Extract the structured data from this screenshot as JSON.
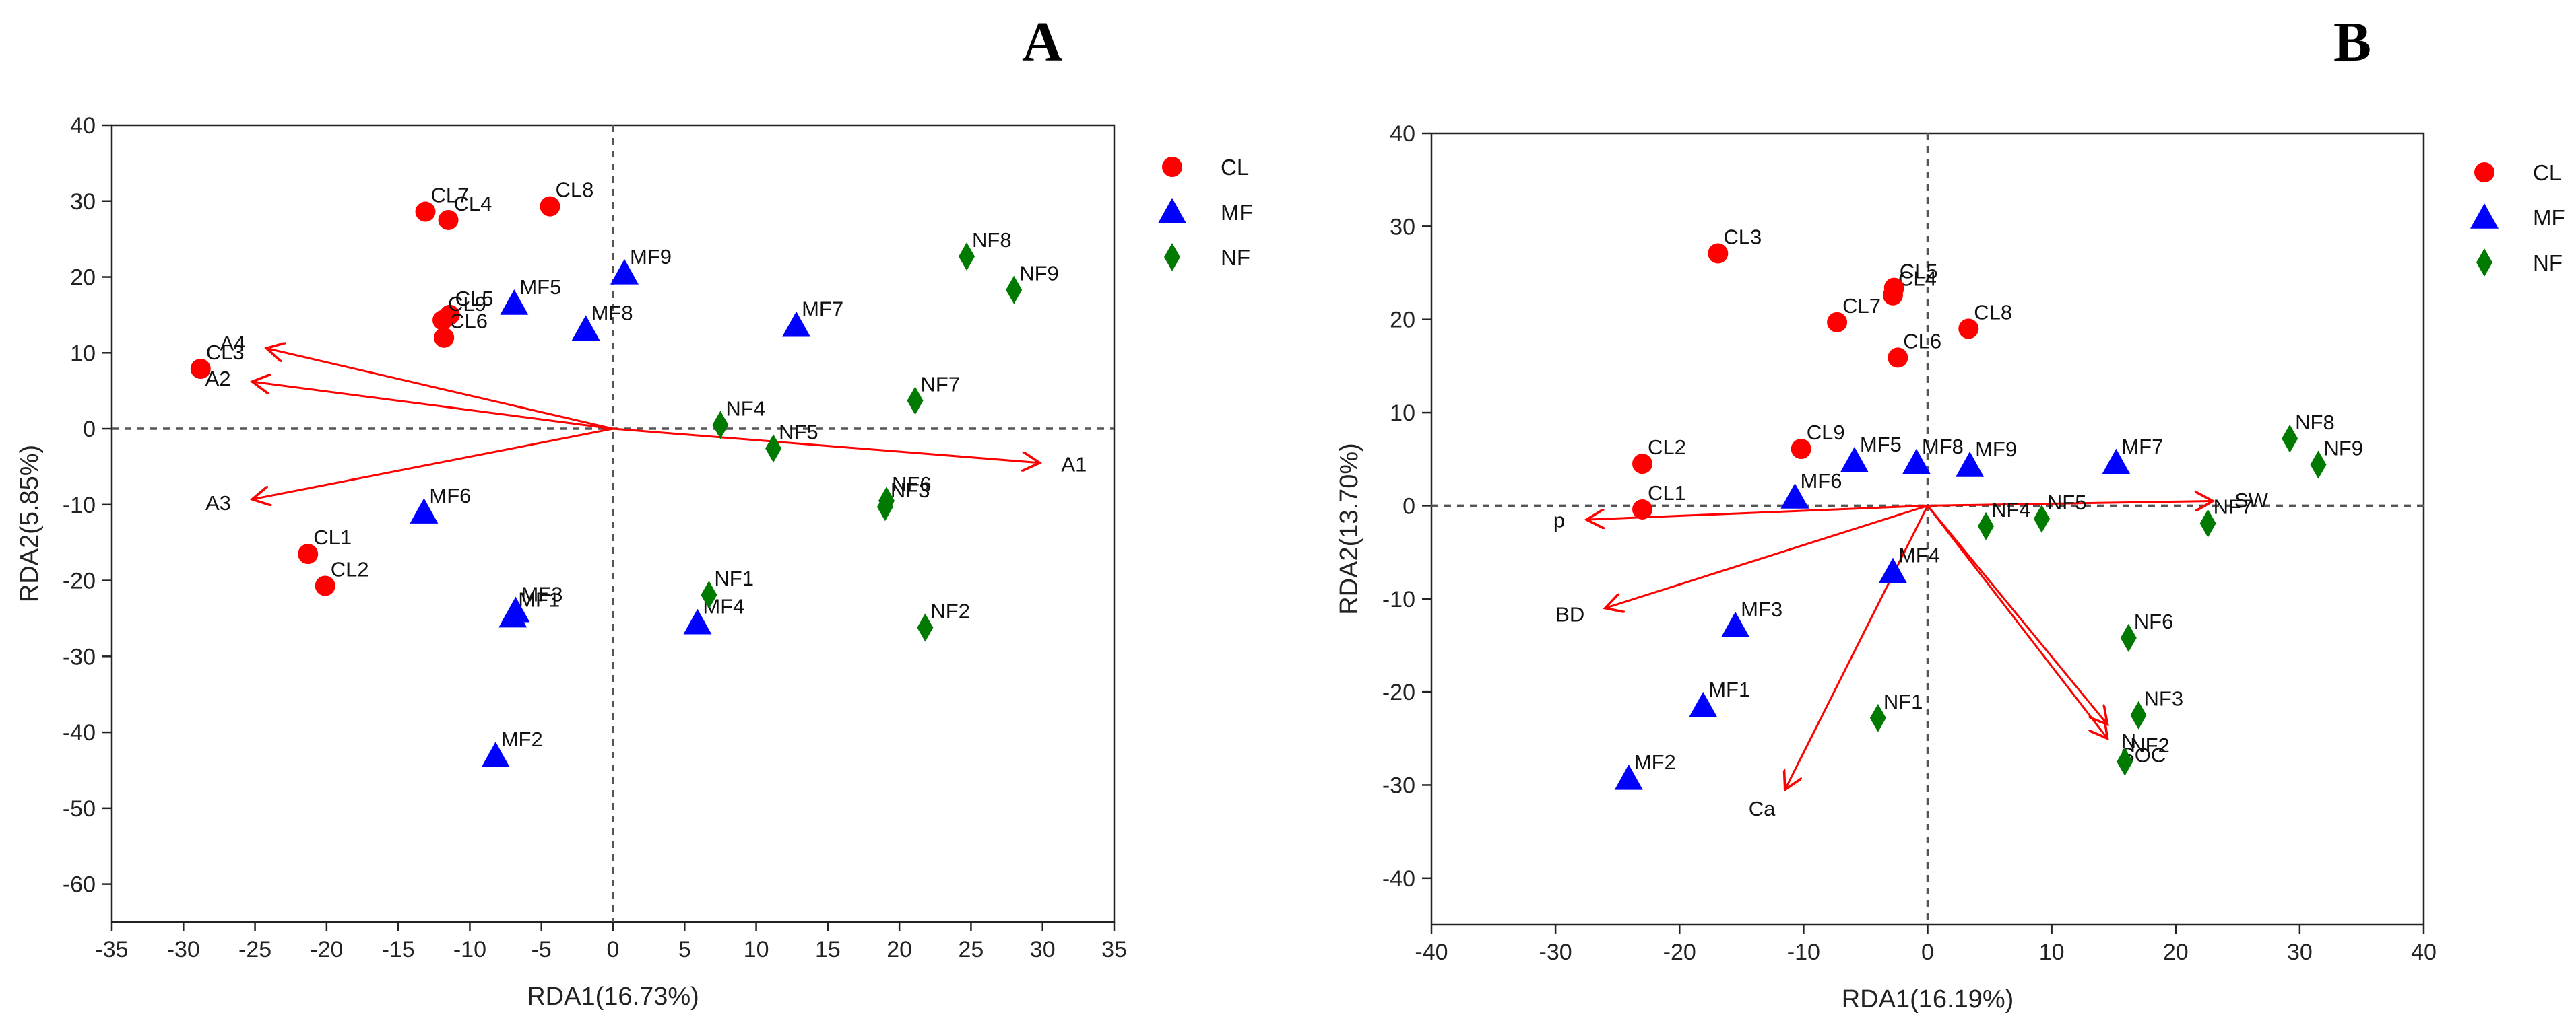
{
  "chart_data": [
    {
      "panel": "A",
      "type": "scatter",
      "xlabel": "RDA1(16.73%)",
      "ylabel": "RDA2(5.85%)",
      "xlim": [
        -35,
        35
      ],
      "ylim": [
        -65,
        40
      ],
      "xticks": [
        -35,
        -30,
        -25,
        -20,
        -15,
        -10,
        -5,
        0,
        5,
        10,
        15,
        20,
        25,
        30,
        35
      ],
      "yticks": [
        -60,
        -50,
        -40,
        -30,
        -20,
        -10,
        0,
        10,
        20,
        30,
        40
      ],
      "legend": [
        {
          "name": "CL",
          "marker": "circle",
          "color": "#ff0000"
        },
        {
          "name": "MF",
          "marker": "triangle",
          "color": "#0000ff"
        },
        {
          "name": "NF",
          "marker": "diamond",
          "color": "#007a00"
        }
      ],
      "points": [
        {
          "label": "CL1",
          "group": "CL",
          "x": -21.3,
          "y": -16.5
        },
        {
          "label": "CL2",
          "group": "CL",
          "x": -20.1,
          "y": -20.7
        },
        {
          "label": "CL3",
          "group": "CL",
          "x": -28.8,
          "y": 7.9
        },
        {
          "label": "CL4",
          "group": "CL",
          "x": -11.5,
          "y": 27.5
        },
        {
          "label": "CL5",
          "group": "CL",
          "x": -11.4,
          "y": 15.0
        },
        {
          "label": "CL6",
          "group": "CL",
          "x": -11.8,
          "y": 12.0
        },
        {
          "label": "CL7",
          "group": "CL",
          "x": -13.1,
          "y": 28.6
        },
        {
          "label": "CL8",
          "group": "CL",
          "x": -4.4,
          "y": 29.3
        },
        {
          "label": "CL9",
          "group": "CL",
          "x": -11.9,
          "y": 14.3
        },
        {
          "label": "MF1",
          "group": "MF",
          "x": -7.0,
          "y": -24.7
        },
        {
          "label": "MF2",
          "group": "MF",
          "x": -8.2,
          "y": -43.1
        },
        {
          "label": "MF3",
          "group": "MF",
          "x": -6.8,
          "y": -24.0
        },
        {
          "label": "MF4",
          "group": "MF",
          "x": 5.9,
          "y": -25.6
        },
        {
          "label": "MF5",
          "group": "MF",
          "x": -6.9,
          "y": 16.5
        },
        {
          "label": "MF6",
          "group": "MF",
          "x": -13.2,
          "y": -11.0
        },
        {
          "label": "MF7",
          "group": "MF",
          "x": 12.8,
          "y": 13.6
        },
        {
          "label": "MF8",
          "group": "MF",
          "x": -1.9,
          "y": 13.1
        },
        {
          "label": "MF9",
          "group": "MF",
          "x": 0.8,
          "y": 20.5
        },
        {
          "label": "NF1",
          "group": "NF",
          "x": 6.7,
          "y": -21.9
        },
        {
          "label": "NF2",
          "group": "NF",
          "x": 21.8,
          "y": -26.2
        },
        {
          "label": "NF3",
          "group": "NF",
          "x": 19.0,
          "y": -10.3
        },
        {
          "label": "NF4",
          "group": "NF",
          "x": 7.5,
          "y": 0.5
        },
        {
          "label": "NF5",
          "group": "NF",
          "x": 11.2,
          "y": -2.6
        },
        {
          "label": "NF6",
          "group": "NF",
          "x": 19.1,
          "y": -9.5
        },
        {
          "label": "NF7",
          "group": "NF",
          "x": 21.1,
          "y": 3.7
        },
        {
          "label": "NF8",
          "group": "NF",
          "x": 24.7,
          "y": 22.7
        },
        {
          "label": "NF9",
          "group": "NF",
          "x": 28.0,
          "y": 18.3
        }
      ],
      "vectors": [
        {
          "label": "A1",
          "x": 29.8,
          "y": -4.5
        },
        {
          "label": "A2",
          "x": -25.2,
          "y": 6.2
        },
        {
          "label": "A3",
          "x": -25.2,
          "y": -9.3
        },
        {
          "label": "A4",
          "x": -24.2,
          "y": 10.6
        }
      ]
    },
    {
      "panel": "B",
      "type": "scatter",
      "xlabel": "RDA1(16.19%)",
      "ylabel": "RDA2(13.70%)",
      "xlim": [
        -40,
        40
      ],
      "ylim": [
        -45,
        40
      ],
      "xticks": [
        -40,
        -30,
        -20,
        -10,
        0,
        10,
        20,
        30,
        40
      ],
      "yticks": [
        -40,
        -30,
        -20,
        -10,
        0,
        10,
        20,
        30,
        40
      ],
      "legend": [
        {
          "name": "CL",
          "marker": "circle",
          "color": "#ff0000"
        },
        {
          "name": "MF",
          "marker": "triangle",
          "color": "#0000ff"
        },
        {
          "name": "NF",
          "marker": "diamond",
          "color": "#007a00"
        }
      ],
      "points": [
        {
          "label": "CL1",
          "group": "CL",
          "x": -23.0,
          "y": -0.4
        },
        {
          "label": "CL2",
          "group": "CL",
          "x": -23.0,
          "y": 4.5
        },
        {
          "label": "CL3",
          "group": "CL",
          "x": -16.9,
          "y": 27.1
        },
        {
          "label": "CL4",
          "group": "CL",
          "x": -2.8,
          "y": 22.6
        },
        {
          "label": "CL5",
          "group": "CL",
          "x": -2.7,
          "y": 23.4
        },
        {
          "label": "CL6",
          "group": "CL",
          "x": -2.4,
          "y": 15.9
        },
        {
          "label": "CL7",
          "group": "CL",
          "x": -7.3,
          "y": 19.7
        },
        {
          "label": "CL8",
          "group": "CL",
          "x": 3.3,
          "y": 19.0
        },
        {
          "label": "CL9",
          "group": "CL",
          "x": -10.2,
          "y": 6.1
        },
        {
          "label": "MF1",
          "group": "MF",
          "x": -18.1,
          "y": -21.5
        },
        {
          "label": "MF2",
          "group": "MF",
          "x": -24.1,
          "y": -29.3
        },
        {
          "label": "MF3",
          "group": "MF",
          "x": -15.5,
          "y": -12.9
        },
        {
          "label": "MF4",
          "group": "MF",
          "x": -2.8,
          "y": -7.1
        },
        {
          "label": "MF5",
          "group": "MF",
          "x": -5.9,
          "y": 4.8
        },
        {
          "label": "MF6",
          "group": "MF",
          "x": -10.7,
          "y": 0.9
        },
        {
          "label": "MF7",
          "group": "MF",
          "x": 15.2,
          "y": 4.6
        },
        {
          "label": "MF8",
          "group": "MF",
          "x": -0.9,
          "y": 4.6
        },
        {
          "label": "MF9",
          "group": "MF",
          "x": 3.4,
          "y": 4.3
        },
        {
          "label": "NF1",
          "group": "NF",
          "x": -4.0,
          "y": -22.8
        },
        {
          "label": "NF2",
          "group": "NF",
          "x": 15.9,
          "y": -27.5
        },
        {
          "label": "NF3",
          "group": "NF",
          "x": 17.0,
          "y": -22.5
        },
        {
          "label": "NF4",
          "group": "NF",
          "x": 4.7,
          "y": -2.2
        },
        {
          "label": "NF5",
          "group": "NF",
          "x": 9.2,
          "y": -1.4
        },
        {
          "label": "NF6",
          "group": "NF",
          "x": 16.2,
          "y": -14.2
        },
        {
          "label": "NF7",
          "group": "NF",
          "x": 22.6,
          "y": -1.9
        },
        {
          "label": "NF8",
          "group": "NF",
          "x": 29.2,
          "y": 7.2
        },
        {
          "label": "NF9",
          "group": "NF",
          "x": 31.5,
          "y": 4.4
        }
      ],
      "vectors": [
        {
          "label": "SW",
          "x": 23.0,
          "y": 0.5
        },
        {
          "label": "p",
          "x": -27.5,
          "y": -1.5
        },
        {
          "label": "BD",
          "x": -26.0,
          "y": -11.0
        },
        {
          "label": "N",
          "x": 14.5,
          "y": -23.5
        },
        {
          "label": "SOC",
          "x": 14.5,
          "y": -25.0
        },
        {
          "label": "Ca",
          "x": -11.5,
          "y": -30.5
        }
      ]
    }
  ]
}
